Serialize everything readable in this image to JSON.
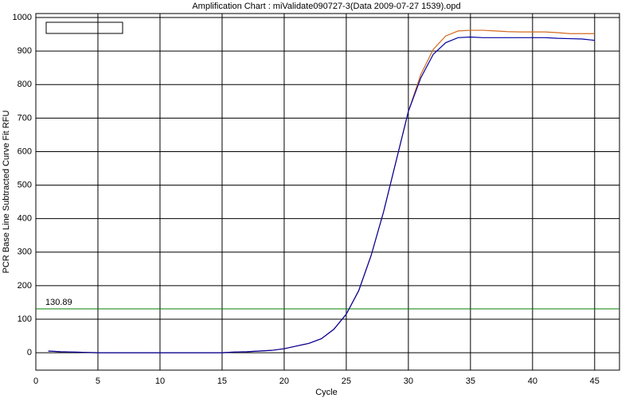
{
  "chart_data": {
    "type": "line",
    "title": "Amplification Chart : miValidate090727-3(Data 2009-07-27 1539).opd",
    "x_label": "Cycle",
    "y_label": "PCR Base Line Subtracted Curve Fit RFU",
    "x": [
      1,
      2,
      3,
      4,
      5,
      6,
      7,
      8,
      9,
      10,
      11,
      12,
      13,
      14,
      15,
      16,
      17,
      18,
      19,
      20,
      21,
      22,
      23,
      24,
      25,
      26,
      27,
      28,
      29,
      30,
      31,
      32,
      33,
      34,
      35,
      36,
      37,
      38,
      39,
      40,
      41,
      42,
      43,
      44,
      45
    ],
    "series": [
      {
        "color": "#d2691e",
        "values": [
          5,
          3,
          2,
          1,
          0,
          0,
          0,
          0,
          0,
          0,
          0,
          0,
          0,
          0,
          0,
          2,
          3,
          5,
          7,
          12,
          20,
          28,
          42,
          70,
          115,
          185,
          290,
          420,
          570,
          720,
          830,
          905,
          945,
          960,
          962,
          962,
          960,
          958,
          957,
          957,
          957,
          955,
          952,
          952,
          952
        ]
      },
      {
        "color": "#0000a0",
        "values": [
          5,
          3,
          2,
          1,
          0,
          0,
          0,
          0,
          0,
          0,
          0,
          0,
          0,
          0,
          0,
          2,
          3,
          5,
          7,
          12,
          20,
          28,
          42,
          70,
          115,
          185,
          290,
          420,
          570,
          720,
          820,
          890,
          925,
          940,
          942,
          940,
          940,
          940,
          940,
          940,
          940,
          938,
          937,
          936,
          932
        ]
      }
    ],
    "threshold": 130.89,
    "threshold_color": "#008000",
    "xlim": [
      0,
      47
    ],
    "ylim": [
      -52,
      1012
    ],
    "xticks": [
      0,
      5,
      10,
      15,
      20,
      25,
      30,
      35,
      40,
      45
    ],
    "yticks": [
      0,
      100,
      200,
      300,
      400,
      500,
      600,
      700,
      800,
      900,
      1000
    ],
    "grid": true
  }
}
